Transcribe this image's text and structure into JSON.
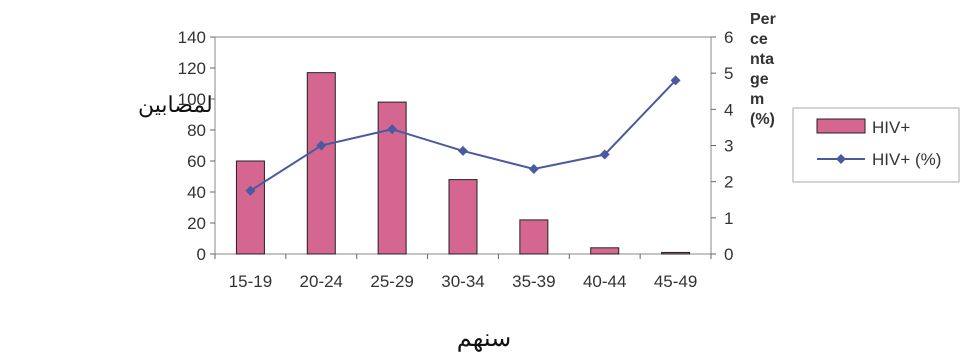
{
  "chart_data": {
    "type": "bar",
    "categories": [
      "15-19",
      "20-24",
      "25-29",
      "30-34",
      "35-39",
      "40-44",
      "45-49"
    ],
    "series": [
      {
        "name": "HIV+",
        "type": "bar",
        "axis": "left",
        "values": [
          60,
          117,
          98,
          48,
          22,
          4,
          1
        ],
        "color": "#d4668f"
      },
      {
        "name": "HIV+ (%)",
        "type": "line",
        "axis": "right",
        "values": [
          1.75,
          3.0,
          3.45,
          2.85,
          2.35,
          2.75,
          4.8
        ],
        "color": "#4a5aa0"
      }
    ],
    "xlabel": "سنهم",
    "ylabel": "عدد المصابين",
    "y2label_lines": [
      "Per",
      "ce",
      "nta",
      "ge",
      "m",
      "(%)"
    ],
    "ylim": [
      0,
      140
    ],
    "yticks": [
      0,
      20,
      40,
      60,
      80,
      100,
      120,
      140
    ],
    "y2lim": [
      0,
      6
    ],
    "y2ticks": [
      0,
      1,
      2,
      3,
      4,
      5,
      6
    ],
    "grid": false,
    "legend_position": "right",
    "plot_background": "#ffffff"
  }
}
